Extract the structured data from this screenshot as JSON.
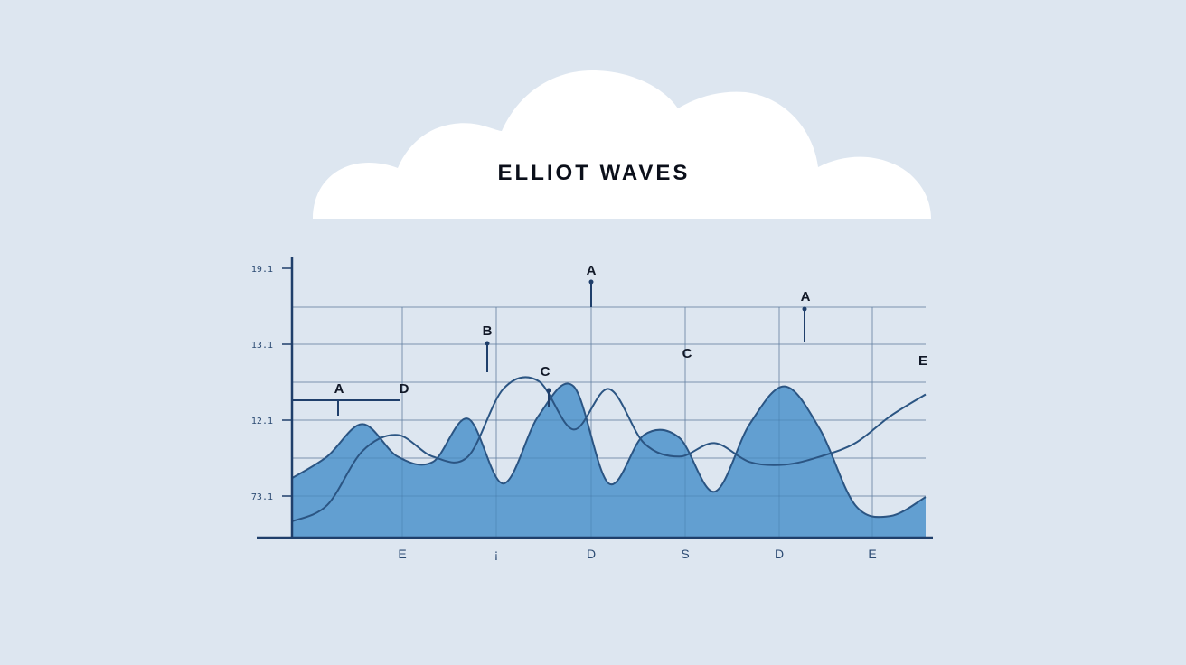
{
  "chart_data": {
    "type": "area",
    "title": "ELLIOT WAVES",
    "yticks": [
      "19.1",
      "13.1",
      "12.1",
      "73.1"
    ],
    "xticks": [
      "E",
      "¡",
      "D",
      "S",
      "D",
      "E"
    ],
    "series": [
      {
        "values": [
          0.22,
          0.3,
          0.42,
          0.3,
          0.28,
          0.44,
          0.2,
          0.45,
          0.56,
          0.2,
          0.38,
          0.37,
          0.17,
          0.42,
          0.56,
          0.4,
          0.12,
          0.08,
          0.15
        ]
      },
      {
        "values": [
          0.06,
          0.12,
          0.32,
          0.38,
          0.3,
          0.3,
          0.55,
          0.58,
          0.4,
          0.55,
          0.35,
          0.3,
          0.35,
          0.28,
          0.27,
          0.3,
          0.35,
          0.45,
          0.53
        ]
      }
    ],
    "annotations": [
      {
        "label": "A",
        "x": 1.0,
        "y": 0.5
      },
      {
        "label": "D",
        "x": 2.4,
        "y": 0.5
      },
      {
        "label": "B",
        "x": 4.2,
        "y": 0.68
      },
      {
        "label": "C",
        "x": 5.6,
        "y": 0.55
      },
      {
        "label": "A",
        "x": 6.5,
        "y": 0.89
      },
      {
        "label": "C",
        "x": 8.7,
        "y": 0.6
      },
      {
        "label": "A",
        "x": 11.2,
        "y": 0.79
      },
      {
        "label": "E",
        "x": 13.8,
        "y": 0.58
      }
    ],
    "grid": true
  }
}
